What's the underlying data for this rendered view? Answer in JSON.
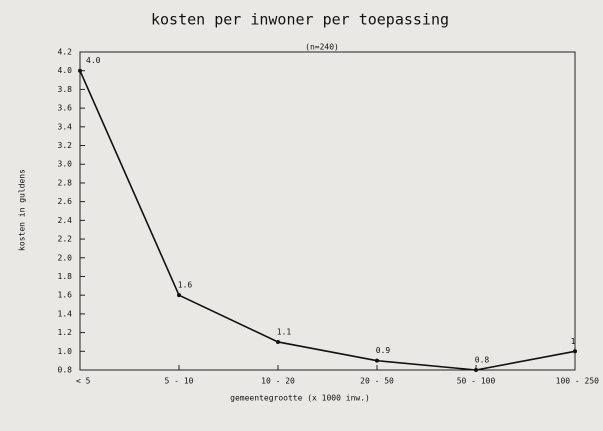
{
  "chart_data": {
    "type": "line",
    "title": "kosten per inwoner per toepassing",
    "subtitle": "(n=240)",
    "y_label": "kosten in guldens",
    "x_label": "gemeentegrootte (x 1000 inw.)",
    "categories": [
      "< 5",
      "5 - 10",
      "10 - 20",
      "20 - 50",
      "50 - 100",
      "100 - 250"
    ],
    "values": [
      4.0,
      1.6,
      1.1,
      0.9,
      0.8,
      1
    ],
    "value_labels": [
      "4.0",
      "1.6",
      "1.1",
      "0.9",
      "0.8",
      "1"
    ],
    "color": "#111111",
    "ylim": [
      0.8,
      4.2
    ],
    "yticks": [
      0.8,
      {
        "value": 1,
        "label": "1.0"
      },
      1.2,
      1.4,
      1.6,
      1.8,
      {
        "value": 2,
        "label": "2.0"
      },
      2.2,
      2.4,
      2.6,
      2.8,
      {
        "value": 3,
        "label": "3.0"
      },
      3.2,
      3.4,
      3.6,
      3.8,
      {
        "value": 4,
        "label": "4.0"
      },
      4.2
    ]
  }
}
